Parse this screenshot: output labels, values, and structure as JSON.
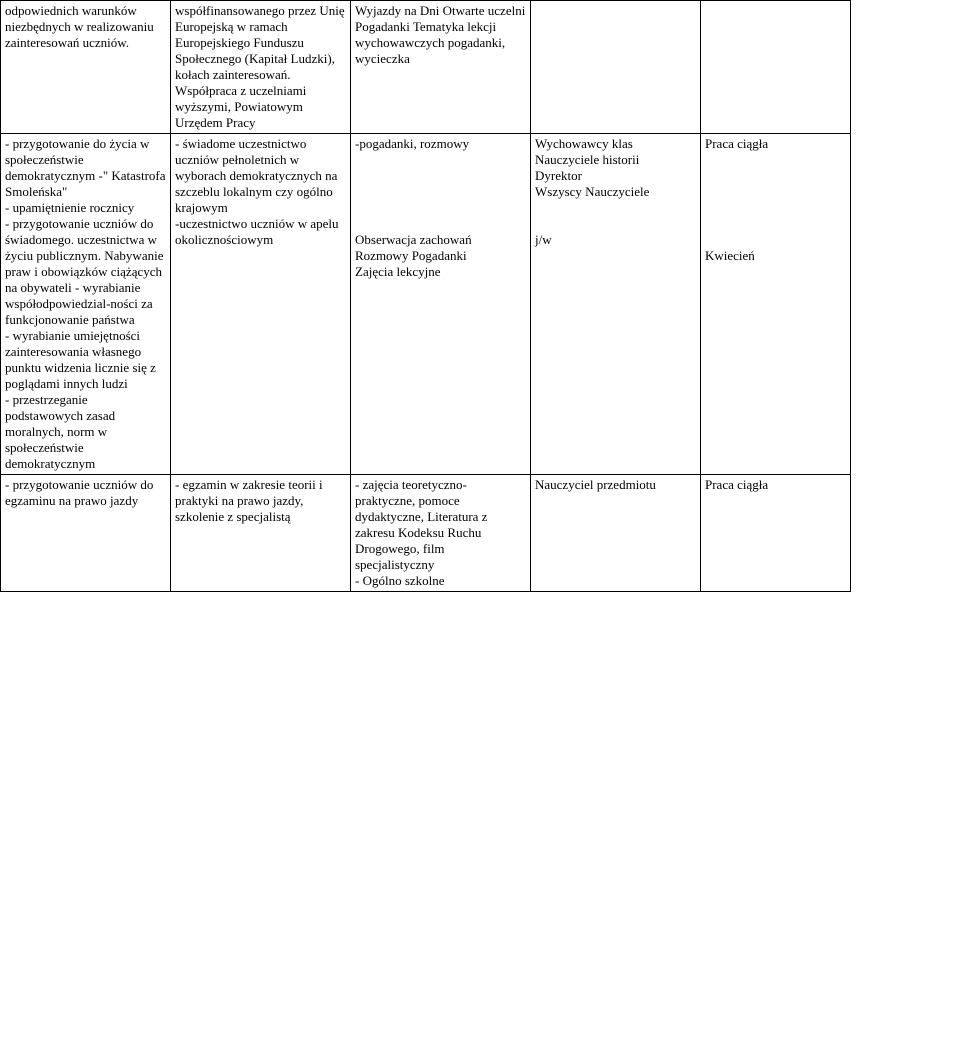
{
  "table": {
    "rows": [
      {
        "c0": "odpowiednich warunków niezbędnych w realizowaniu zainteresowań uczniów.",
        "c1": "współfinansowanego przez Unię Europejską w ramach Europejskiego Funduszu Społecznego (Kapitał Ludzki), kołach zainteresowań. Współpraca z uczelniami wyższymi, Powiatowym Urzędem Pracy",
        "c2": "Wyjazdy na Dni Otwarte uczelni Pogadanki Tematyka lekcji wychowawczych pogadanki, wycieczka",
        "c3": "",
        "c4": "",
        "c5": ""
      },
      {
        "c0": "- przygotowanie do życia w społeczeństwie demokratycznym -\" Katastrofa Smoleńska\"\n - upamiętnienie rocznicy\n- przygotowanie uczniów do świadomego. uczestnictwa w życiu publicznym. Nabywanie praw i obowiązków ciążących na obywateli - wyrabianie współodpowiedzial-ności za funkcjonowanie państwa\n- wyrabianie umiejętności zainteresowania własnego punktu widzenia licznie się z poglądami innych ludzi\n- przestrzeganie podstawowych zasad moralnych, norm w społeczeństwie demokratycznym",
        "c1": "- świadome uczestnictwo uczniów pełnoletnich w wyborach demokratycznych na szczeblu lokalnym czy ogólno krajowym\n-uczestnictwo uczniów w apelu okolicznościowym",
        "c2": "-pogadanki, rozmowy\n\n\n\n\n\nObserwacja zachowań Rozmowy Pogadanki\n  Zajęcia lekcyjne",
        "c3": "Wychowawcy klas Nauczyciele historii\nDyrektor\nWszyscy Nauczyciele\n\n\n            j/w",
        "c4": "Praca ciągła\n\n\n\n\n\n\nKwiecień",
        "c5": ""
      },
      {
        "c0": "- przygotowanie uczniów do egzaminu na prawo jazdy",
        "c1": "- egzamin w zakresie teorii i praktyki na prawo jazdy, szkolenie z specjalistą",
        "c2": "- zajęcia teoretyczno-praktyczne, pomoce dydaktyczne, Literatura z zakresu Kodeksu Ruchu Drogowego, film specjalistyczny\n- Ogólno szkolne",
        "c3": "Nauczyciel przedmiotu",
        "c4": "Praca ciągła",
        "c5": ""
      }
    ]
  }
}
